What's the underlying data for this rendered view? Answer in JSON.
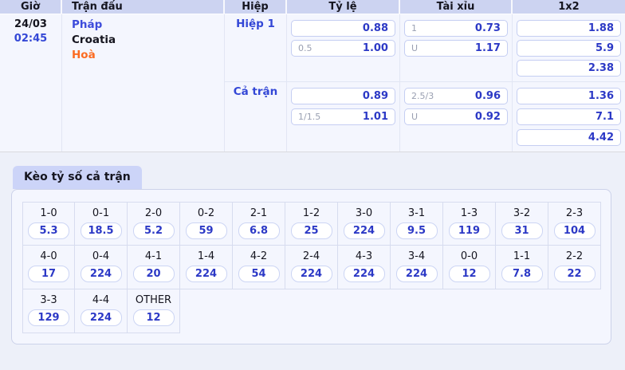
{
  "colors": {
    "accent_blue": "#3347d6",
    "odds_blue": "#2c39c6",
    "draw_orange": "#fb6b21",
    "header_bg": "#ccd3f1",
    "tab_bg": "#ccd4f8",
    "panel_bg": "#f4f6fe"
  },
  "odds_table": {
    "headers": {
      "time": "Giờ",
      "match": "Trận đấu",
      "half": "Hiệp",
      "rate": "Tỷ lệ",
      "over_under": "Tài xỉu",
      "one_x_two": "1x2"
    },
    "time": {
      "date": "24/03",
      "clock": "02:45"
    },
    "match": {
      "home": "Pháp",
      "away": "Croatia",
      "draw": "Hoà"
    },
    "sections": [
      {
        "label": "Hiệp 1",
        "rate": [
          {
            "hdp": "",
            "odds": "0.88"
          },
          {
            "hdp": "0.5",
            "odds": "1.00"
          }
        ],
        "over_under": [
          {
            "hdp": "1",
            "odds": "0.73"
          },
          {
            "hdp": "U",
            "odds": "1.17"
          }
        ],
        "one_x_two": [
          "1.88",
          "5.9",
          "2.38"
        ]
      },
      {
        "label": "Cả trận",
        "rate": [
          {
            "hdp": "",
            "odds": "0.89"
          },
          {
            "hdp": "1/1.5",
            "odds": "1.01"
          }
        ],
        "over_under": [
          {
            "hdp": "2.5/3",
            "odds": "0.96"
          },
          {
            "hdp": "U",
            "odds": "0.92"
          }
        ],
        "one_x_two": [
          "1.36",
          "7.1",
          "4.42"
        ]
      }
    ]
  },
  "score_section": {
    "title": "Kèo tỷ số cả trận",
    "rows": [
      [
        {
          "score": "1-0",
          "odds": "5.3"
        },
        {
          "score": "0-1",
          "odds": "18.5"
        },
        {
          "score": "2-0",
          "odds": "5.2"
        },
        {
          "score": "0-2",
          "odds": "59"
        },
        {
          "score": "2-1",
          "odds": "6.8"
        },
        {
          "score": "1-2",
          "odds": "25"
        },
        {
          "score": "3-0",
          "odds": "224"
        },
        {
          "score": "3-1",
          "odds": "9.5"
        },
        {
          "score": "1-3",
          "odds": "119"
        },
        {
          "score": "3-2",
          "odds": "31"
        },
        {
          "score": "2-3",
          "odds": "104"
        }
      ],
      [
        {
          "score": "4-0",
          "odds": "17"
        },
        {
          "score": "0-4",
          "odds": "224"
        },
        {
          "score": "4-1",
          "odds": "20"
        },
        {
          "score": "1-4",
          "odds": "224"
        },
        {
          "score": "4-2",
          "odds": "54"
        },
        {
          "score": "2-4",
          "odds": "224"
        },
        {
          "score": "4-3",
          "odds": "224"
        },
        {
          "score": "3-4",
          "odds": "224"
        },
        {
          "score": "0-0",
          "odds": "12"
        },
        {
          "score": "1-1",
          "odds": "7.8"
        },
        {
          "score": "2-2",
          "odds": "22"
        }
      ],
      [
        {
          "score": "3-3",
          "odds": "129"
        },
        {
          "score": "4-4",
          "odds": "224"
        },
        {
          "score": "OTHER",
          "odds": "12"
        }
      ]
    ]
  }
}
